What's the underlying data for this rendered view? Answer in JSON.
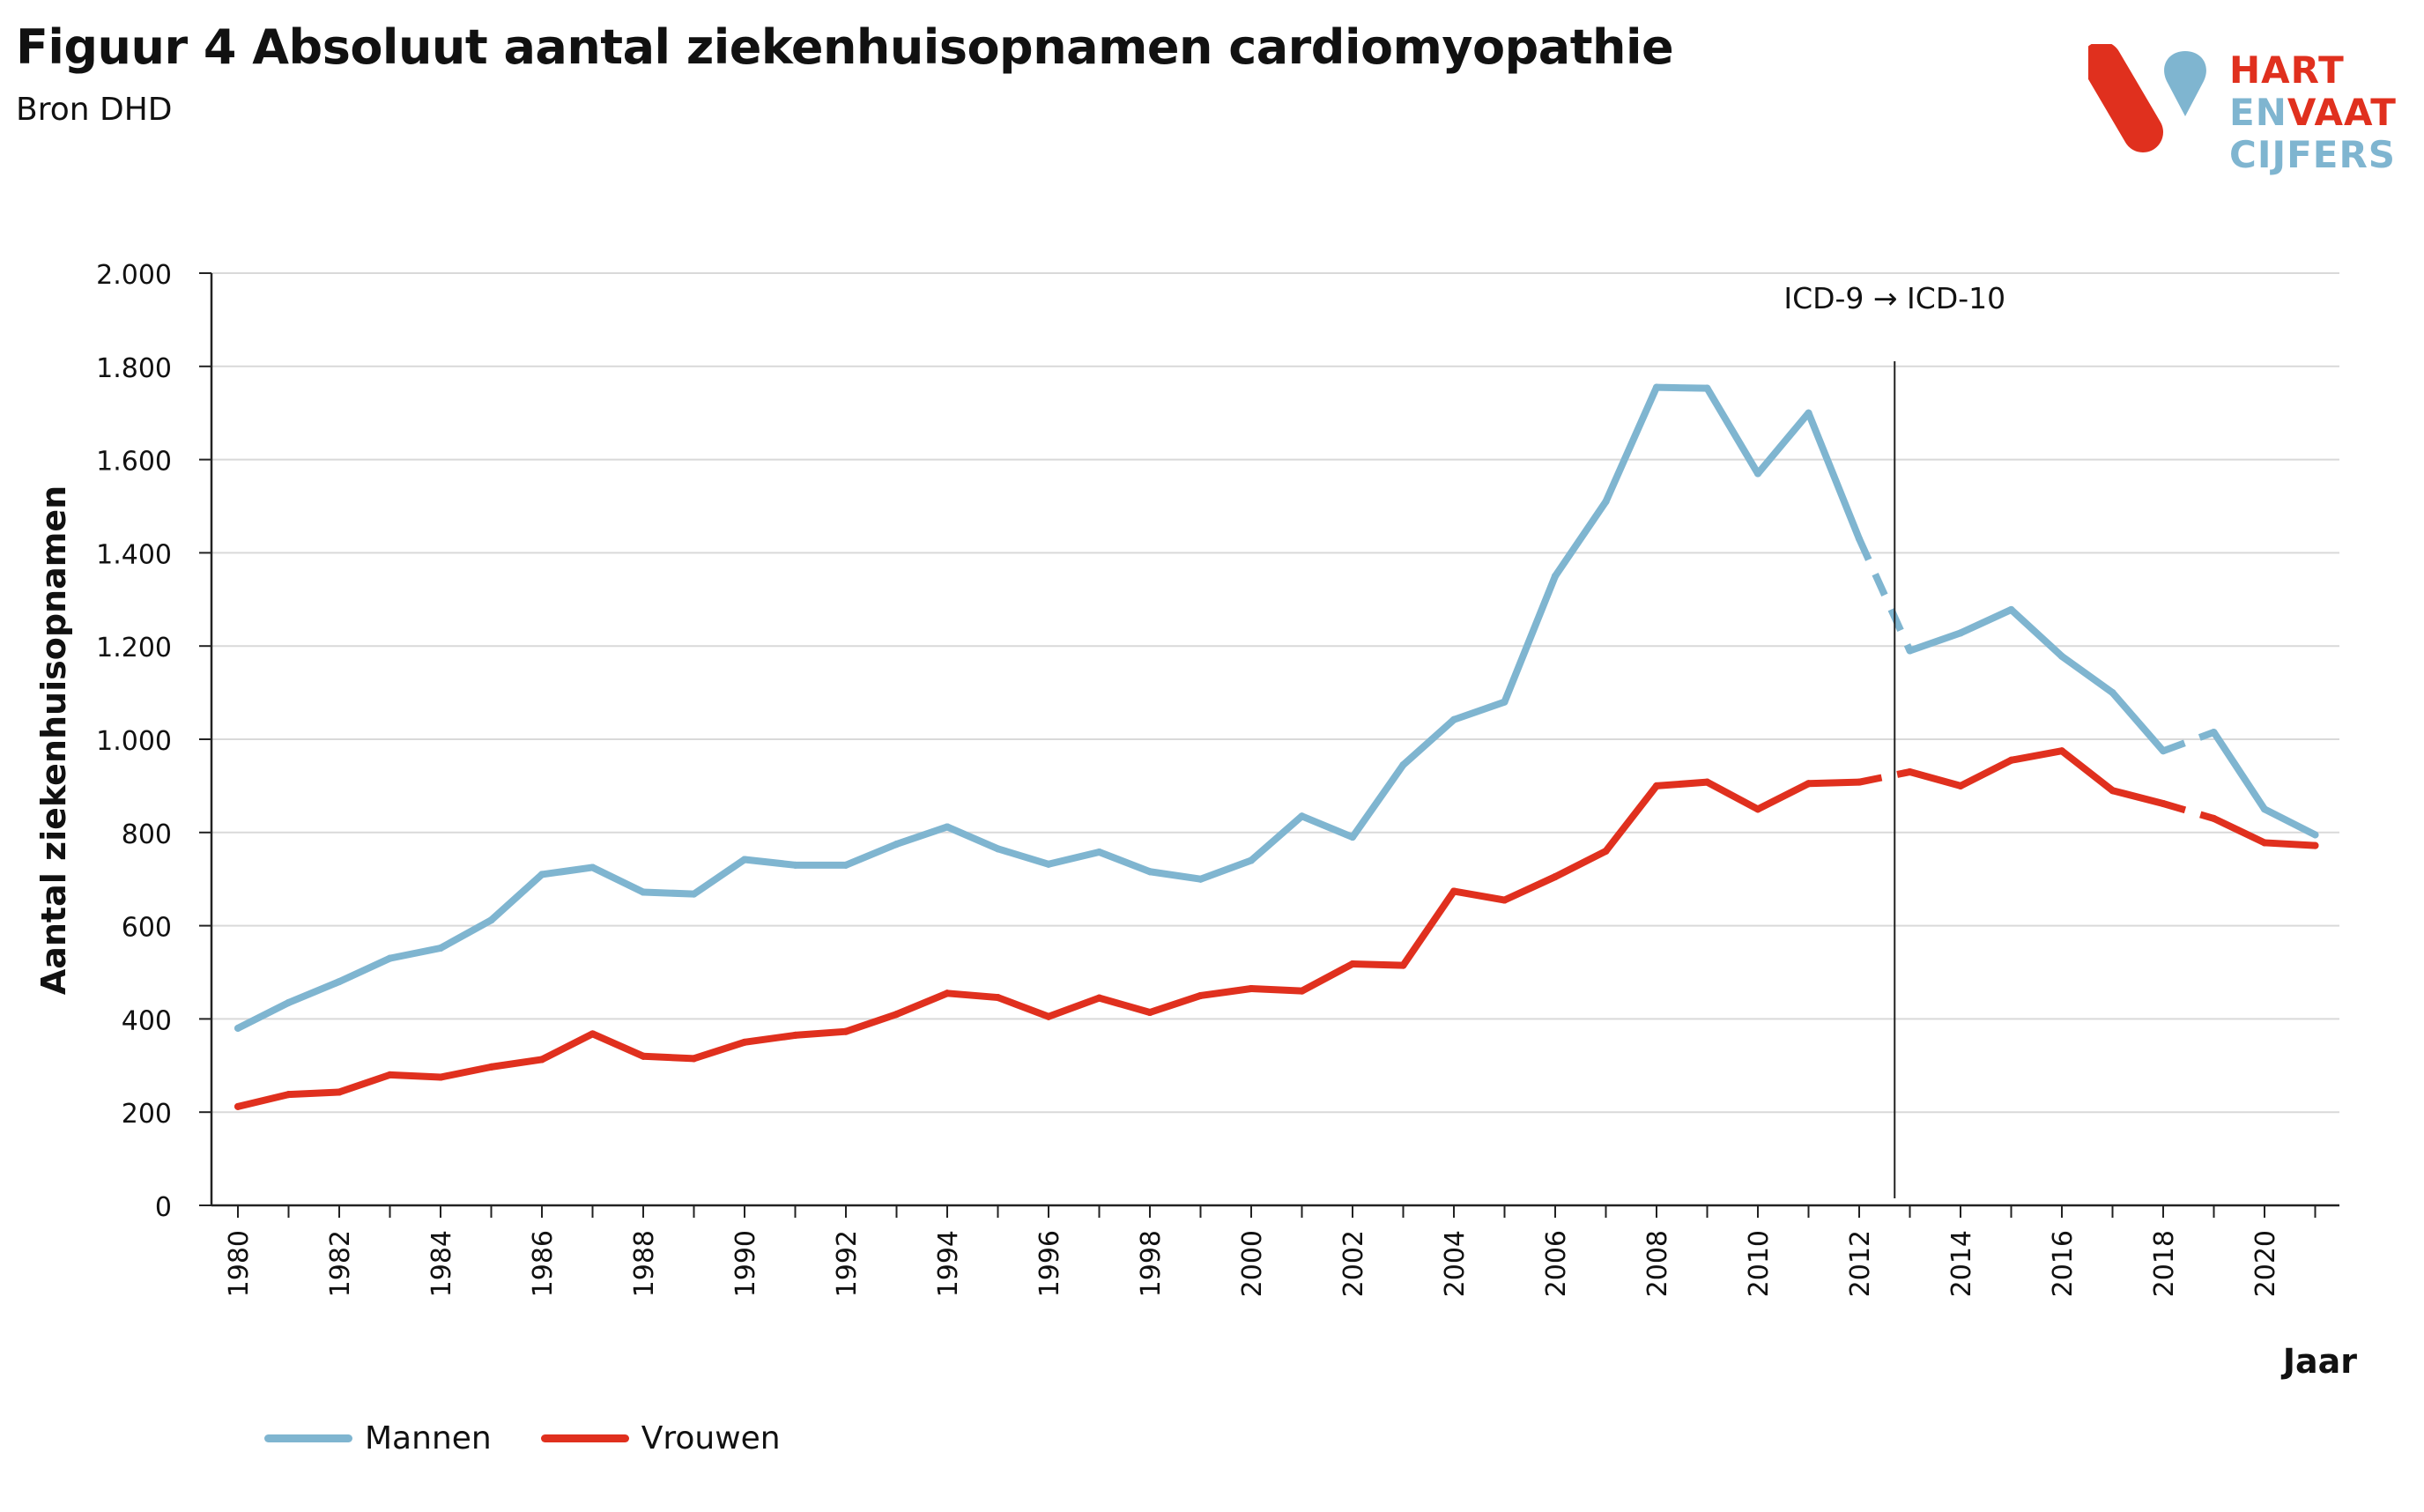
{
  "header": {
    "title": "Figuur 4 Absoluut aantal ziekenhuisopnamen cardiomyopathie",
    "subtitle": "Bron DHD"
  },
  "logo": {
    "line1": "HART",
    "line2a": "EN",
    "line2b": "VAAT",
    "line3": "CIJFERS",
    "colors": {
      "red": "#e0301e",
      "blue": "#7fb5d0"
    }
  },
  "chart_data": {
    "type": "line",
    "ylabel": "Aantal ziekenhuisopnamen",
    "xlabel": "Jaar",
    "ylim": [
      0,
      2000
    ],
    "xlim": [
      1980,
      2021
    ],
    "y_ticks": [
      0,
      200,
      400,
      600,
      800,
      1000,
      1200,
      1400,
      1600,
      1800,
      2000
    ],
    "y_tick_labels": [
      "0",
      "200",
      "400",
      "600",
      "800",
      "1.000",
      "1.200",
      "1.400",
      "1.600",
      "1.800",
      "2.000"
    ],
    "x_tick_labels": [
      "1980",
      "1982",
      "1984",
      "1986",
      "1988",
      "1990",
      "1992",
      "1994",
      "1996",
      "1998",
      "2000",
      "2002",
      "2004",
      "2006",
      "2008",
      "2010",
      "2012",
      "2014",
      "2016",
      "2018",
      "2020"
    ],
    "grid": "horizontal",
    "legend_position": "bottom-left",
    "annotation": {
      "text": "ICD-9 → ICD-10",
      "x": 2012.7
    },
    "series": [
      {
        "name": "Mannen",
        "color": "#7fb5d0",
        "x": [
          1980,
          1981,
          1982,
          1983,
          1984,
          1985,
          1986,
          1987,
          1988,
          1989,
          1990,
          1991,
          1992,
          1993,
          1994,
          1995,
          1996,
          1997,
          1998,
          1999,
          2000,
          2001,
          2002,
          2003,
          2004,
          2005,
          2006,
          2007,
          2008,
          2009,
          2010,
          2011,
          2012,
          2013,
          2014,
          2015,
          2016,
          2017,
          2018,
          2019,
          2020,
          2021
        ],
        "values": [
          380,
          435,
          480,
          530,
          552,
          612,
          710,
          725,
          672,
          668,
          742,
          730,
          730,
          775,
          812,
          765,
          732,
          758,
          716,
          700,
          740,
          835,
          790,
          945,
          1042,
          1080,
          1350,
          1510,
          1755,
          1753,
          1570,
          1700,
          1430,
          1190,
          1228,
          1278,
          1178,
          1100,
          975,
          1015,
          850,
          795
        ],
        "dashed_segments": [
          [
            2012,
            2013
          ],
          [
            2018,
            2019
          ]
        ]
      },
      {
        "name": "Vrouwen",
        "color": "#e0301e",
        "x": [
          1980,
          1981,
          1982,
          1983,
          1984,
          1985,
          1986,
          1987,
          1988,
          1989,
          1990,
          1991,
          1992,
          1993,
          1994,
          1995,
          1996,
          1997,
          1998,
          1999,
          2000,
          2001,
          2002,
          2003,
          2004,
          2005,
          2006,
          2007,
          2008,
          2009,
          2010,
          2011,
          2012,
          2013,
          2014,
          2015,
          2016,
          2017,
          2018,
          2019,
          2020,
          2021
        ],
        "values": [
          212,
          238,
          243,
          280,
          275,
          297,
          313,
          368,
          320,
          315,
          350,
          365,
          373,
          410,
          455,
          446,
          405,
          445,
          414,
          450,
          465,
          460,
          518,
          515,
          674,
          655,
          705,
          760,
          900,
          908,
          850,
          905,
          908,
          930,
          900,
          955,
          975,
          890,
          862,
          830,
          778,
          772
        ],
        "dashed_segments": [
          [
            2012,
            2013
          ],
          [
            2018,
            2019
          ]
        ]
      }
    ]
  }
}
